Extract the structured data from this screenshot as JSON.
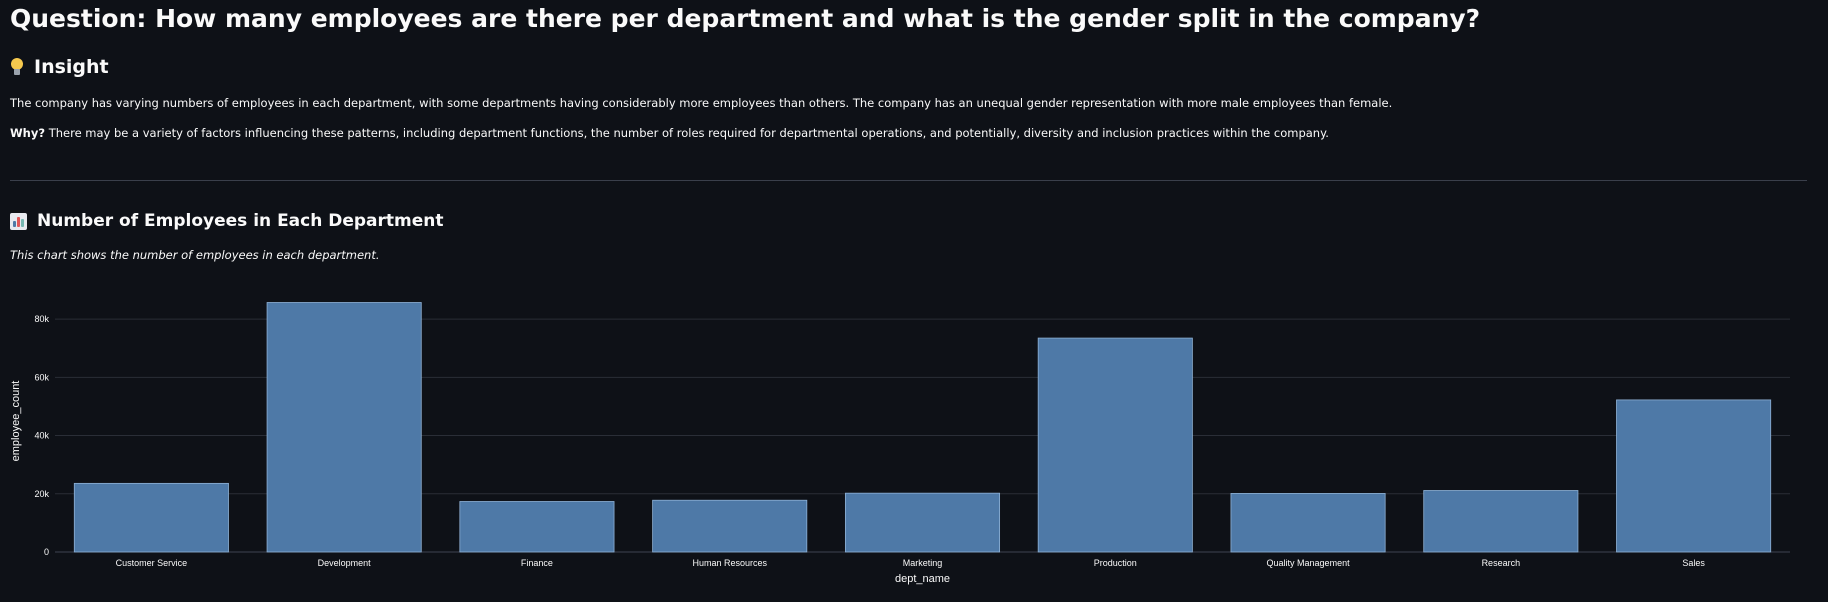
{
  "header": {
    "question": "Question: How many employees are there per department and what is the gender split in the company?",
    "insight_heading": "Insight",
    "insight_text": "The company has varying numbers of employees in each department, with some departments having considerably more employees than others. The company has an unequal gender representation with more male employees than female.",
    "why_label": "Why?",
    "why_text": " There may be a variety of factors influencing these patterns, including department functions, the number of roles required for departmental operations, and potentially, diversity and inclusion practices within the company."
  },
  "section": {
    "title": "Number of Employees in Each Department",
    "subtitle": "This chart shows the number of employees in each department."
  },
  "icons": {
    "insight": "lightbulb-icon",
    "chart": "bar-chart-icon"
  },
  "colors": {
    "background": "#0e1117",
    "bar": "#4e79a7",
    "text": "#fafafa",
    "grid": "#2a2e37"
  },
  "chart_data": {
    "type": "bar",
    "categories": [
      "Customer Service",
      "Development",
      "Finance",
      "Human Resources",
      "Marketing",
      "Production",
      "Quality Management",
      "Research",
      "Sales"
    ],
    "values": [
      23580,
      85707,
      17346,
      17786,
      20211,
      73485,
      20117,
      21126,
      52245
    ],
    "xlabel": "dept_name",
    "ylabel": "employee_count",
    "ylim": [
      0,
      90000
    ],
    "yticks": [
      0,
      20000,
      40000,
      60000,
      80000
    ],
    "ytick_labels": [
      "0",
      "20k",
      "40k",
      "60k",
      "80k"
    ],
    "grid": true
  }
}
